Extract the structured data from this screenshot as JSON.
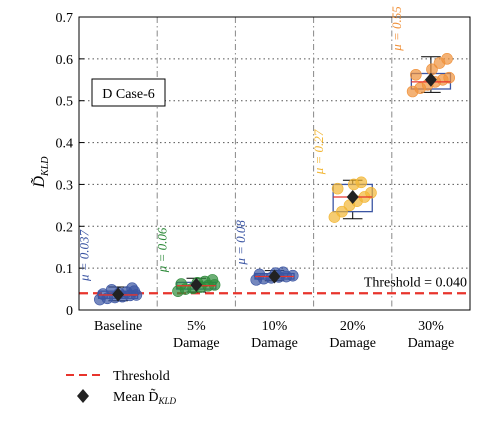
{
  "chart_data": {
    "type": "box",
    "panel_label": "D Case-6",
    "ylabel": "D̃",
    "ylabel_sub": "KLD",
    "ylim": [
      0,
      0.7
    ],
    "yticks": [
      0,
      0.1,
      0.2,
      0.3,
      0.4,
      0.5,
      0.6,
      0.7
    ],
    "ytick_labels": [
      "0",
      "0.1",
      "0.2",
      "0.3",
      "0.4",
      "0.5",
      "0.6",
      "0.7"
    ],
    "grid": "dotted",
    "threshold": {
      "value": 0.04,
      "label": "Threshold = 0.040",
      "color": "#e8342c"
    },
    "groups": [
      {
        "label": [
          "Baseline",
          ""
        ],
        "mu_label": "μ = 0.037",
        "color": "#3b55a3",
        "mean": 0.037,
        "whisker_low": 0.022,
        "q1": 0.028,
        "median": 0.036,
        "q3": 0.045,
        "whisker_high": 0.055,
        "points": [
          0.025,
          0.028,
          0.03,
          0.032,
          0.035,
          0.036,
          0.038,
          0.04,
          0.043,
          0.045,
          0.048,
          0.052
        ]
      },
      {
        "label": [
          "5%",
          "Damage"
        ],
        "mu_label": "μ = 0.06",
        "color": "#2e8b3a",
        "mean": 0.06,
        "whisker_low": 0.043,
        "q1": 0.05,
        "median": 0.058,
        "q3": 0.066,
        "whisker_high": 0.076,
        "points": [
          0.045,
          0.05,
          0.052,
          0.055,
          0.058,
          0.06,
          0.062,
          0.065,
          0.068,
          0.072
        ]
      },
      {
        "label": [
          "10%",
          "Damage"
        ],
        "mu_label": "μ = 0.08",
        "color": "#3b55a3",
        "mean": 0.08,
        "whisker_low": 0.07,
        "q1": 0.074,
        "median": 0.08,
        "q3": 0.087,
        "whisker_high": 0.094,
        "points": [
          0.072,
          0.075,
          0.077,
          0.079,
          0.08,
          0.082,
          0.085,
          0.088,
          0.09
        ]
      },
      {
        "label": [
          "20%",
          "Damage"
        ],
        "mu_label": "μ = 0.27",
        "color": "#f2b634",
        "mean": 0.27,
        "whisker_low": 0.218,
        "q1": 0.235,
        "median": 0.27,
        "q3": 0.3,
        "whisker_high": 0.31,
        "points": [
          0.222,
          0.235,
          0.25,
          0.26,
          0.27,
          0.28,
          0.29,
          0.3,
          0.305
        ]
      },
      {
        "label": [
          "30%",
          "Damage"
        ],
        "mu_label": "μ = 0.55",
        "color": "#f0913a",
        "mean": 0.55,
        "whisker_low": 0.52,
        "q1": 0.528,
        "median": 0.545,
        "q3": 0.565,
        "whisker_high": 0.605,
        "points": [
          0.522,
          0.53,
          0.538,
          0.545,
          0.55,
          0.555,
          0.562,
          0.575,
          0.59,
          0.6
        ]
      }
    ],
    "legend": {
      "threshold_label": "Threshold",
      "mean_label": "Mean D̃",
      "mean_label_sub": "KLD"
    }
  }
}
